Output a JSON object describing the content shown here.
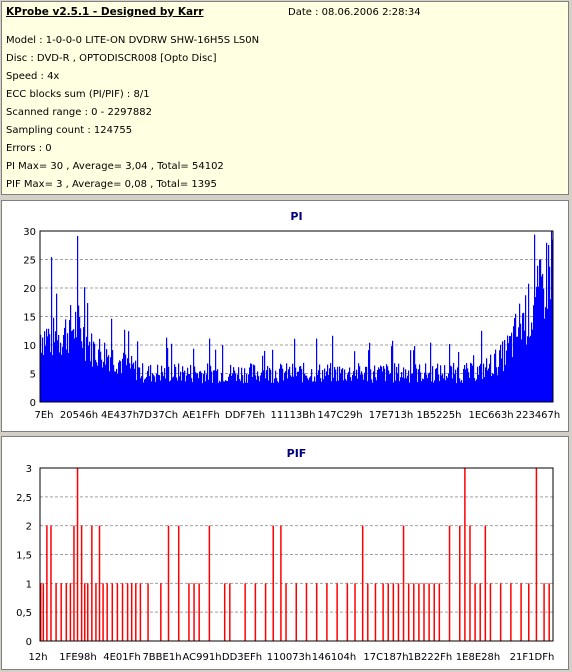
{
  "info": {
    "title": "KProbe v2.5.1 - Designed by Karr",
    "date": "Date : 08.06.2006 2:28:34",
    "lines": [
      "Model : 1-0-0-0 LITE-ON DVDRW SHW-16H5S  LS0N",
      "Disc : DVD-R , OPTODISCR008 [Opto Disc]",
      "Speed : 4x",
      "ECC blocks sum (PI/PIF) : 8/1",
      "Scanned range : 0 - 2297882",
      "Sampling count : 124755",
      "Errors : 0",
      "PI Max= 30 , Average= 3,04 , Total= 54102",
      "PIF Max= 3 , Average= 0,08 , Total= 1395"
    ]
  },
  "chart_data": [
    {
      "type": "bar",
      "title": "PI",
      "color": "#0000ff",
      "ylim": [
        0,
        30
      ],
      "yticks": [
        "0",
        "5",
        "10",
        "15",
        "20",
        "25",
        "30"
      ],
      "xtick_labels": [
        "7Eh",
        "20546h",
        "4E437h",
        "7D37Ch",
        "AE1FFh",
        "DDF7Eh",
        "11113Bh",
        "147C29h",
        "17E713h",
        "1B5225h",
        "1EC663h",
        "223467h"
      ],
      "grid": true,
      "profile": [
        {
          "x": 0.0,
          "y": 14
        },
        {
          "x": 0.03,
          "y": 13
        },
        {
          "x": 0.07,
          "y": 16
        },
        {
          "x": 0.1,
          "y": 11
        },
        {
          "x": 0.13,
          "y": 10
        },
        {
          "x": 0.16,
          "y": 8
        },
        {
          "x": 0.2,
          "y": 6
        },
        {
          "x": 0.3,
          "y": 6
        },
        {
          "x": 0.4,
          "y": 6
        },
        {
          "x": 0.5,
          "y": 6
        },
        {
          "x": 0.6,
          "y": 6
        },
        {
          "x": 0.7,
          "y": 6
        },
        {
          "x": 0.8,
          "y": 6
        },
        {
          "x": 0.85,
          "y": 6
        },
        {
          "x": 0.87,
          "y": 7
        },
        {
          "x": 0.9,
          "y": 9
        },
        {
          "x": 0.92,
          "y": 12
        },
        {
          "x": 0.94,
          "y": 17
        },
        {
          "x": 0.96,
          "y": 19
        },
        {
          "x": 0.98,
          "y": 23
        },
        {
          "x": 1.0,
          "y": 30
        }
      ]
    },
    {
      "type": "bar",
      "title": "PIF",
      "color": "#ff0000",
      "ylim": [
        0,
        3
      ],
      "yticks": [
        "0",
        "0,5",
        "1",
        "1,5",
        "2",
        "2,5",
        "3"
      ],
      "xtick_labels": [
        "12h",
        "1FE98h",
        "4E01Fh",
        "7BBE1h",
        "AC991h",
        "DD3EFh",
        "110073h",
        "146104h",
        "17C187h",
        "1B222Fh",
        "1E8E28h",
        "21F1DFh"
      ],
      "grid": true,
      "spikes_x": [
        0.0,
        0.005,
        0.012,
        0.02,
        0.03,
        0.04,
        0.05,
        0.058,
        0.065,
        0.072,
        0.08,
        0.086,
        0.092,
        0.1,
        0.108,
        0.115,
        0.122,
        0.13,
        0.14,
        0.15,
        0.16,
        0.17,
        0.178,
        0.186,
        0.195,
        0.21,
        0.235,
        0.25,
        0.27,
        0.29,
        0.3,
        0.31,
        0.33,
        0.36,
        0.37,
        0.4,
        0.42,
        0.44,
        0.455,
        0.47,
        0.48,
        0.5,
        0.52,
        0.54,
        0.56,
        0.58,
        0.6,
        0.615,
        0.63,
        0.64,
        0.655,
        0.67,
        0.68,
        0.69,
        0.7,
        0.71,
        0.72,
        0.73,
        0.74,
        0.75,
        0.76,
        0.77,
        0.78,
        0.8,
        0.82,
        0.83,
        0.84,
        0.85,
        0.86,
        0.87,
        0.88,
        0.9,
        0.92,
        0.94,
        0.955,
        0.97,
        0.985,
        0.995
      ],
      "spikes_y": [
        1,
        1,
        2,
        2,
        1,
        1,
        1,
        1,
        2,
        3,
        2,
        1,
        1,
        2,
        1,
        2,
        1,
        1,
        1,
        1,
        1,
        1,
        1,
        1,
        1,
        1,
        1,
        2,
        2,
        1,
        1,
        1,
        2,
        1,
        1,
        1,
        1,
        1,
        2,
        2,
        1,
        1,
        1,
        1,
        1,
        1,
        1,
        1,
        2,
        1,
        1,
        1,
        1,
        1,
        1,
        2,
        1,
        1,
        1,
        1,
        1,
        1,
        1,
        2,
        2,
        3,
        2,
        1,
        1,
        2,
        1,
        1,
        1,
        1,
        1,
        3,
        1,
        1
      ]
    }
  ]
}
